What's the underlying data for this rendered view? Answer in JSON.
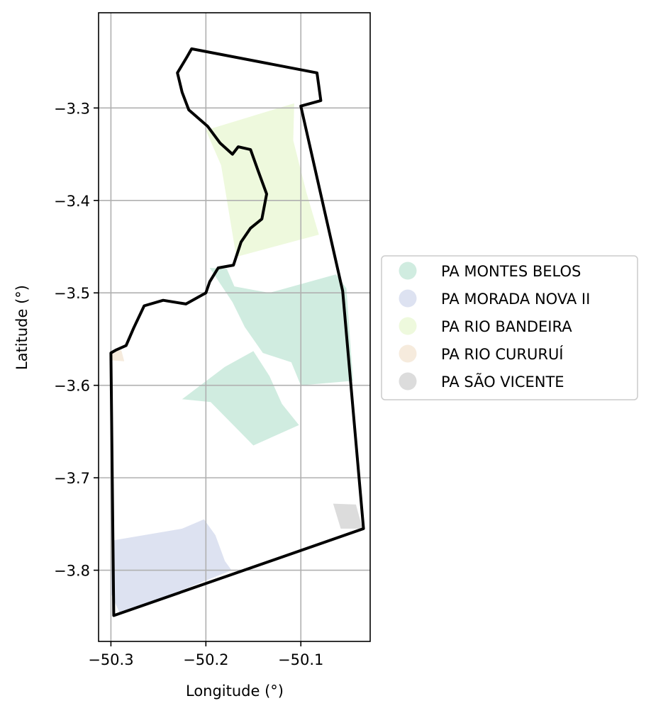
{
  "chart_data": {
    "type": "map",
    "xlabel": "Longitude (°)",
    "ylabel": "Latitude (°)",
    "xlim": [
      -50.313,
      -50.027
    ],
    "ylim": [
      -3.877,
      -3.197
    ],
    "grid": true,
    "x_ticks": [
      {
        "value": -50.3,
        "label": "−50.3"
      },
      {
        "value": -50.2,
        "label": "−50.2"
      },
      {
        "value": -50.1,
        "label": "−50.1"
      }
    ],
    "y_ticks": [
      {
        "value": -3.3,
        "label": "−3.3"
      },
      {
        "value": -3.4,
        "label": "−3.4"
      },
      {
        "value": -3.5,
        "label": "−3.5"
      },
      {
        "value": -3.6,
        "label": "−3.6"
      },
      {
        "value": -3.7,
        "label": "−3.7"
      },
      {
        "value": -3.8,
        "label": "−3.8"
      }
    ],
    "legend_placement": "right",
    "legend": [
      {
        "name": "PA MONTES BELOS",
        "color": "#d0ece0"
      },
      {
        "name": "PA MORADA NOVA II",
        "color": "#dde2f1"
      },
      {
        "name": "PA RIO BANDEIRA",
        "color": "#eef9dd"
      },
      {
        "name": "PA RIO CURURUÍ",
        "color": "#f6ebdd"
      },
      {
        "name": "PA SÃO VICENTE",
        "color": "#dcdcdc"
      }
    ],
    "settlements": [
      {
        "name": "PA RIO BANDEIRA",
        "color": "#eef9dd",
        "polygons": [
          [
            [
              -50.2,
              -3.324
            ],
            [
              -50.107,
              -3.295
            ],
            [
              -50.108,
              -3.335
            ],
            [
              -50.094,
              -3.392
            ],
            [
              -50.081,
              -3.437
            ],
            [
              -50.168,
              -3.461
            ],
            [
              -50.184,
              -3.362
            ]
          ]
        ]
      },
      {
        "name": "PA MONTES BELOS",
        "color": "#d0ece0",
        "polygons": [
          [
            [
              -50.196,
              -3.473
            ],
            [
              -50.178,
              -3.474
            ],
            [
              -50.17,
              -3.493
            ],
            [
              -50.133,
              -3.5
            ],
            [
              -50.063,
              -3.48
            ],
            [
              -50.052,
              -3.495
            ],
            [
              -50.045,
              -3.595
            ],
            [
              -50.1,
              -3.6
            ],
            [
              -50.11,
              -3.575
            ],
            [
              -50.14,
              -3.565
            ],
            [
              -50.159,
              -3.537
            ],
            [
              -50.172,
              -3.51
            ]
          ],
          [
            [
              -50.225,
              -3.615
            ],
            [
              -50.18,
              -3.58
            ],
            [
              -50.15,
              -3.563
            ],
            [
              -50.133,
              -3.59
            ],
            [
              -50.12,
              -3.62
            ],
            [
              -50.102,
              -3.643
            ],
            [
              -50.15,
              -3.665
            ],
            [
              -50.195,
              -3.618
            ]
          ]
        ]
      },
      {
        "name": "PA MORADA NOVA II",
        "color": "#dde2f1",
        "polygons": [
          [
            [
              -50.299,
              -3.768
            ],
            [
              -50.225,
              -3.755
            ],
            [
              -50.202,
              -3.745
            ],
            [
              -50.19,
              -3.762
            ],
            [
              -50.18,
              -3.79
            ],
            [
              -50.173,
              -3.8
            ],
            [
              -50.29,
              -3.848
            ],
            [
              -50.3,
              -3.825
            ]
          ]
        ]
      },
      {
        "name": "PA RIO CURURUÍ",
        "color": "#f6ebdd",
        "polygons": [
          [
            [
              -50.299,
              -3.563
            ],
            [
              -50.289,
              -3.562
            ],
            [
              -50.286,
              -3.574
            ],
            [
              -50.299,
              -3.573
            ]
          ]
        ]
      },
      {
        "name": "PA SÃO VICENTE",
        "color": "#dcdcdc",
        "polygons": [
          [
            [
              -50.066,
              -3.728
            ],
            [
              -50.042,
              -3.729
            ],
            [
              -50.035,
              -3.755
            ],
            [
              -50.058,
              -3.755
            ]
          ]
        ]
      }
    ],
    "boundary": [
      [
        -50.215,
        -3.236
      ],
      [
        -50.083,
        -3.262
      ],
      [
        -50.079,
        -3.292
      ],
      [
        -50.1,
        -3.298
      ],
      [
        -50.056,
        -3.498
      ],
      [
        -50.034,
        -3.755
      ],
      [
        -50.297,
        -3.849
      ],
      [
        -50.3,
        -3.565
      ],
      [
        -50.295,
        -3.562
      ],
      [
        -50.284,
        -3.557
      ],
      [
        -50.276,
        -3.538
      ],
      [
        -50.265,
        -3.514
      ],
      [
        -50.245,
        -3.508
      ],
      [
        -50.221,
        -3.512
      ],
      [
        -50.2,
        -3.5
      ],
      [
        -50.196,
        -3.488
      ],
      [
        -50.187,
        -3.473
      ],
      [
        -50.171,
        -3.47
      ],
      [
        -50.163,
        -3.445
      ],
      [
        -50.153,
        -3.43
      ],
      [
        -50.141,
        -3.42
      ],
      [
        -50.136,
        -3.393
      ],
      [
        -50.145,
        -3.368
      ],
      [
        -50.153,
        -3.345
      ],
      [
        -50.166,
        -3.342
      ],
      [
        -50.172,
        -3.35
      ],
      [
        -50.185,
        -3.338
      ],
      [
        -50.198,
        -3.32
      ],
      [
        -50.218,
        -3.302
      ],
      [
        -50.225,
        -3.283
      ],
      [
        -50.23,
        -3.262
      ],
      [
        -50.22,
        -3.245
      ]
    ]
  }
}
